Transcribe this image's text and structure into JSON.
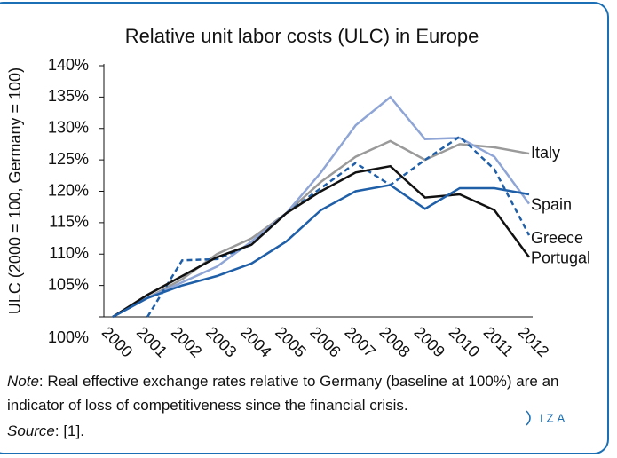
{
  "chart_data": {
    "type": "line",
    "title": "Relative unit labor costs (ULC) in Europe",
    "y_label": "ULC (2000 = 100, Germany = 100)",
    "x": [
      "2000",
      "2001",
      "2002",
      "2003",
      "2004",
      "2005",
      "2006",
      "2007",
      "2008",
      "2009",
      "2010",
      "2011",
      "2012"
    ],
    "ylim": [
      100,
      140
    ],
    "yticks": [
      {
        "value": 100,
        "label": "100%"
      },
      {
        "value": 105,
        "label": "105%"
      },
      {
        "value": 110,
        "label": "110%"
      },
      {
        "value": 115,
        "label": "115%"
      },
      {
        "value": 120,
        "label": "120%"
      },
      {
        "value": 125,
        "label": "125%"
      },
      {
        "value": 130,
        "label": "130%"
      },
      {
        "value": 135,
        "label": "135%"
      },
      {
        "value": 140,
        "label": "140%"
      }
    ],
    "series": [
      {
        "name": "Italy",
        "color": "#9a9a9a",
        "dash": false,
        "values": [
          100,
          103,
          106,
          110,
          112.5,
          116.5,
          121.5,
          125.5,
          128,
          125,
          127.5,
          127,
          126
        ]
      },
      {
        "name": "Spain",
        "color": "#8ea5d6",
        "dash": false,
        "values": [
          100,
          103,
          105.5,
          108,
          112,
          116.5,
          123,
          130.5,
          135,
          128.3,
          128.5,
          125.5,
          118
        ]
      },
      {
        "name": "Greece",
        "color": "#1f5fa8",
        "dash": true,
        "values": [
          null,
          100,
          109,
          109.2,
          111.5,
          116.5,
          120.5,
          124.5,
          121,
          125,
          128.7,
          123.5,
          113
        ]
      },
      {
        "name": "Portugal",
        "color": "#111111",
        "dash": false,
        "values": [
          100,
          103.5,
          106.5,
          109.5,
          111.5,
          116.5,
          120,
          123,
          124,
          119,
          119.5,
          117,
          109.5
        ]
      },
      {
        "color": "#1f5fa8",
        "dash": false,
        "values": [
          100,
          103,
          105,
          106.5,
          108.5,
          112,
          117,
          120,
          121,
          117.2,
          120.5,
          120.5,
          119.5
        ]
      }
    ]
  },
  "note": {
    "label": "Note",
    "text": ": Real effective exchange rates relative to Germany (baseline at 100%) are an indicator of loss of competitiveness since the financial crisis."
  },
  "source": {
    "label": "Source",
    "text": ": [1]."
  },
  "logo": "IZA"
}
